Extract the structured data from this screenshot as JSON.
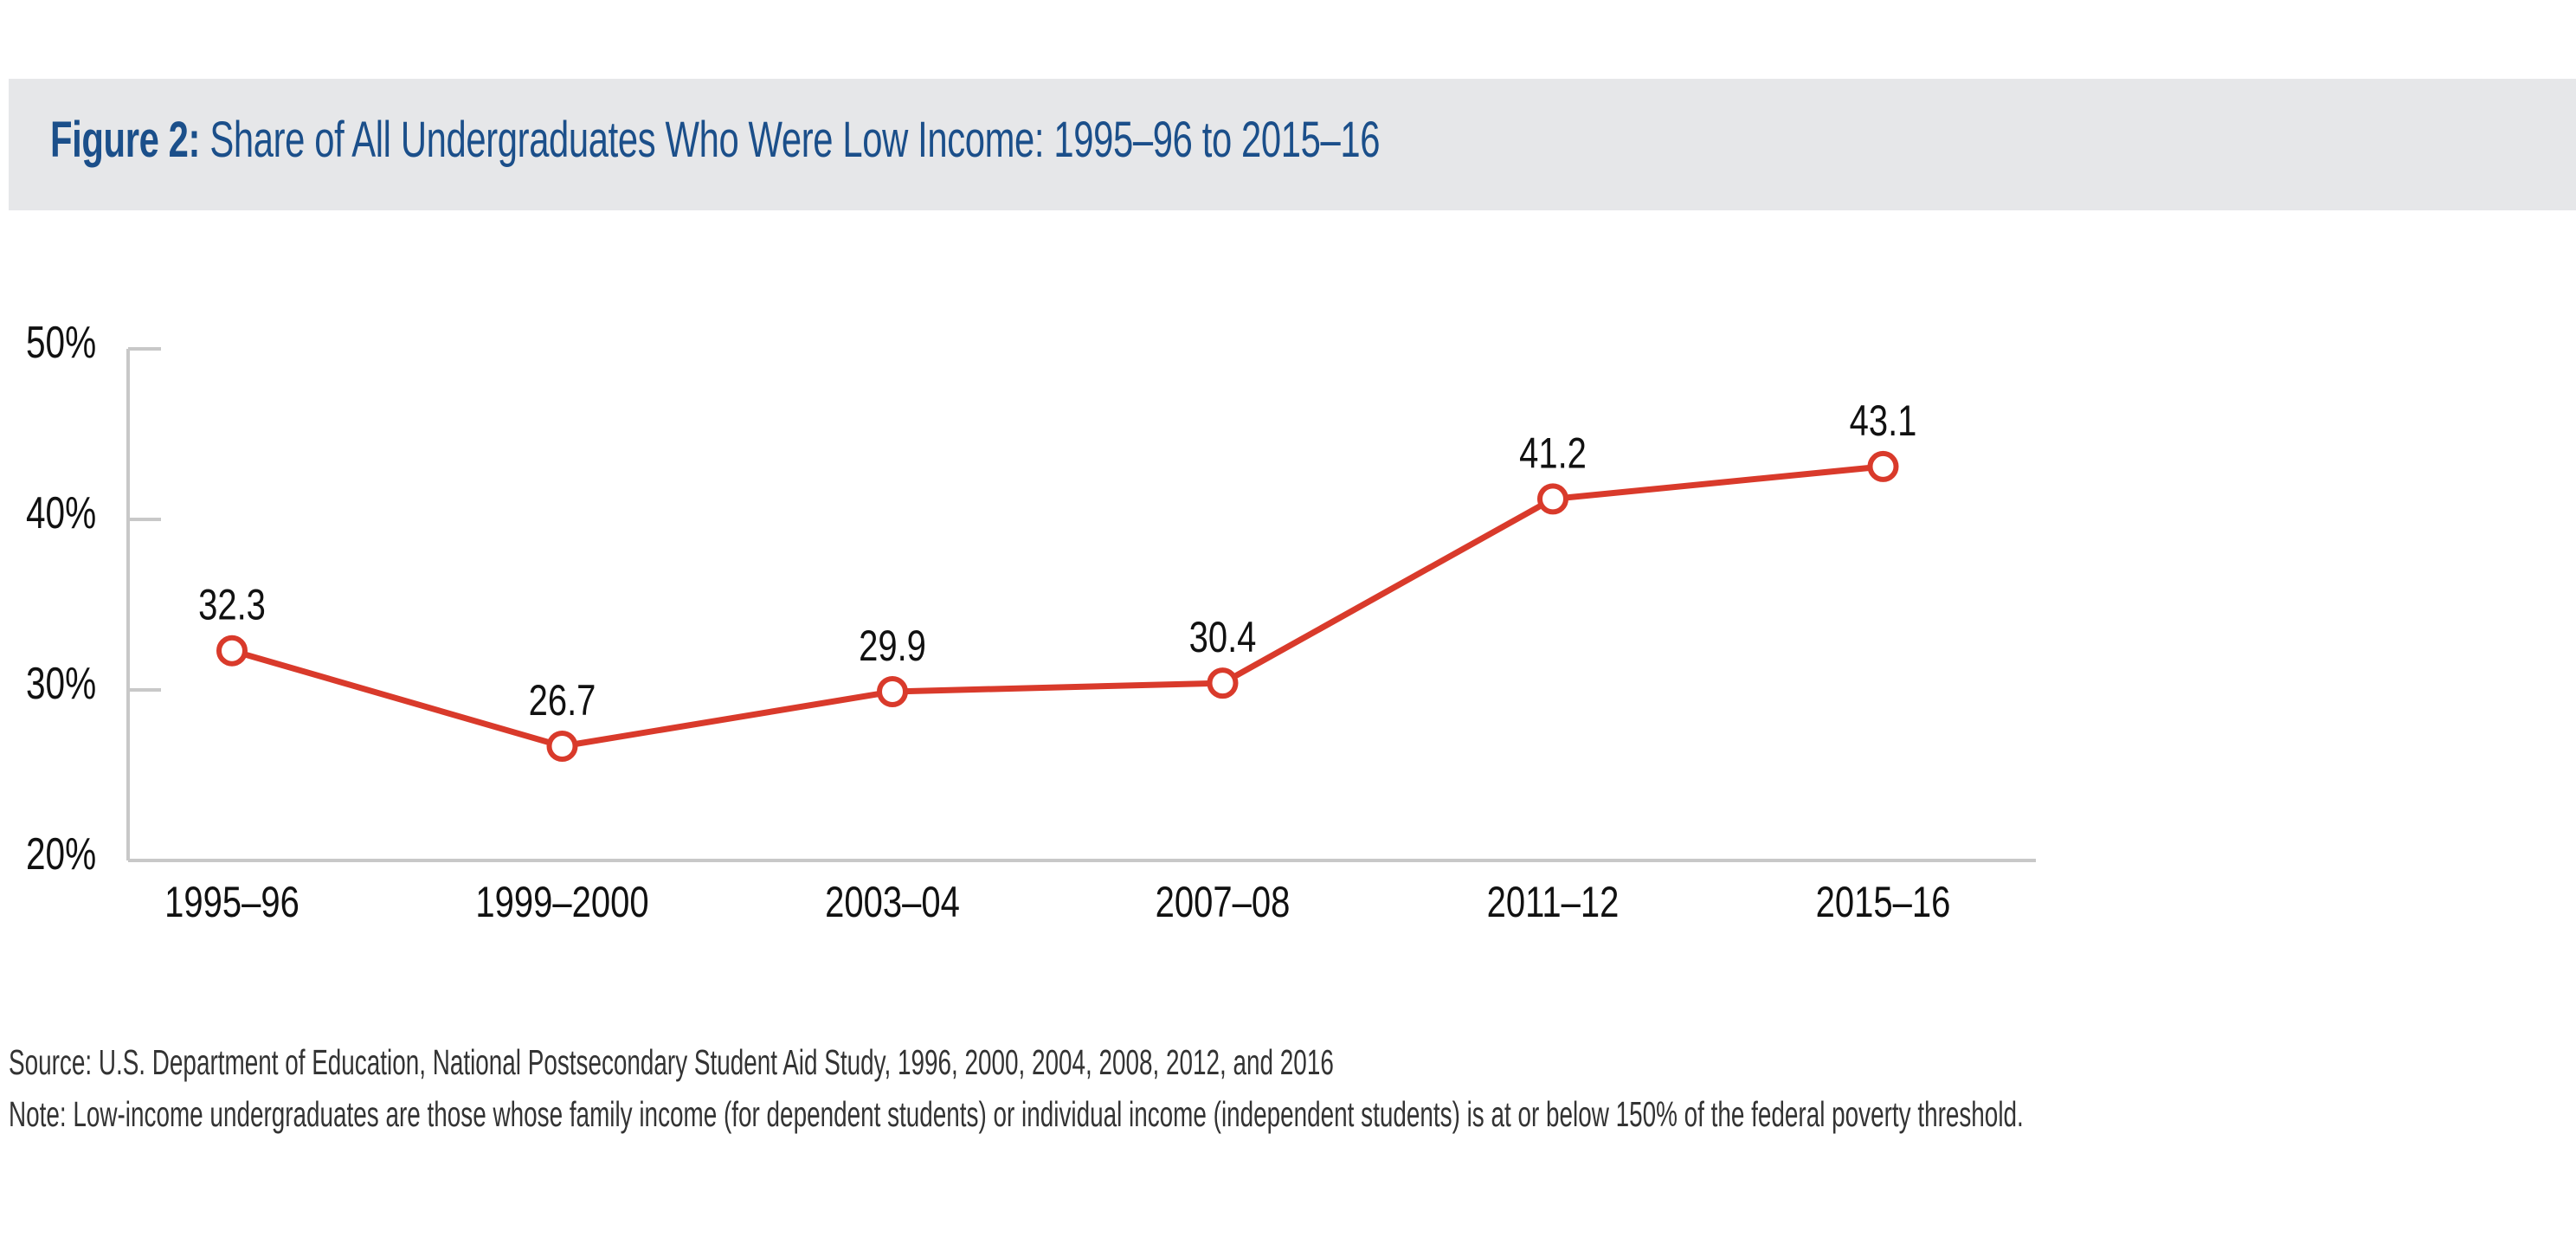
{
  "header": {
    "title_prefix": "Figure 2:",
    "title_text": " Share of All Undergraduates Who Were Low Income: 1995–96 to 2015–16"
  },
  "colors": {
    "title": "#1b4f8a",
    "band": "#e6e7e9",
    "line": "#d93a2b",
    "axis": "#c8c8c8",
    "text": "#111111"
  },
  "chart_data": {
    "type": "line",
    "title": "Share of All Undergraduates Who Were Low Income: 1995–96 to 2015–16",
    "categories": [
      "1995–96",
      "1999–2000",
      "2003–04",
      "2007–08",
      "2011–12",
      "2015–16"
    ],
    "values": [
      32.3,
      26.7,
      29.9,
      30.4,
      41.2,
      43.1
    ],
    "data_labels": [
      "32.3",
      "26.7",
      "29.9",
      "30.4",
      "41.2",
      "43.1"
    ],
    "ylim": [
      20,
      50
    ],
    "y_ticks": [
      20,
      30,
      40,
      50
    ],
    "y_tick_labels": [
      "20%",
      "30%",
      "40%",
      "50%"
    ],
    "xlabel": "",
    "ylabel": "",
    "grid": false,
    "legend": "none"
  },
  "footer": {
    "source": "Source: U.S. Department of Education, National Postsecondary Student Aid Study, 1996, 2000, 2004, 2008, 2012, and 2016",
    "note": "Note: Low-income undergraduates are those whose family income (for dependent students) or individual income (independent students) is at or below 150% of the federal poverty threshold."
  }
}
